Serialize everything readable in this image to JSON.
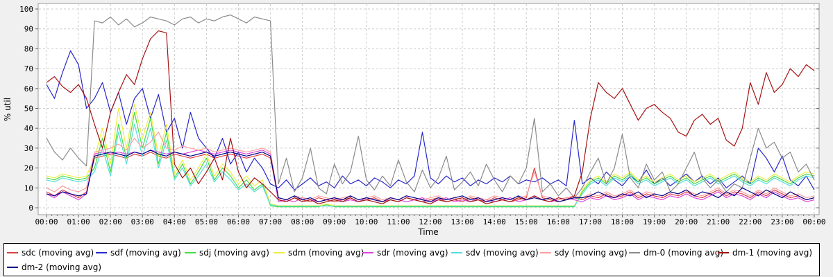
{
  "chart_data": {
    "type": "line",
    "title": "",
    "xlabel": "Time",
    "ylabel": "% util",
    "x_range_hours": [
      0,
      24
    ],
    "ylim": [
      0,
      100
    ],
    "grid": "dashed",
    "legend_position": "bottom",
    "y_ticks": [
      0,
      10,
      20,
      30,
      40,
      50,
      60,
      70,
      80,
      90,
      100
    ],
    "x_tick_labels": [
      "00:00",
      "01:00",
      "02:00",
      "03:00",
      "04:00",
      "05:00",
      "06:00",
      "07:00",
      "08:00",
      "09:00",
      "10:00",
      "11:00",
      "12:00",
      "13:00",
      "14:00",
      "15:00",
      "16:00",
      "17:00",
      "18:00",
      "19:00",
      "20:00",
      "21:00",
      "22:00",
      "23:00",
      "00:00"
    ],
    "colors": {
      "plot_background": "#ffffff",
      "page_background": "#f0f0f0",
      "plot_border": "#999999",
      "gridline": "#cccccc",
      "tick": "#666666",
      "text": "#000000"
    },
    "series": [
      {
        "name": "sdc (moving avg)",
        "color": "#dd4040",
        "values": [
          8,
          6,
          9,
          7,
          5,
          8,
          25,
          26,
          27,
          26,
          25,
          27,
          26,
          28,
          26,
          25,
          27,
          26,
          25,
          26,
          27,
          25,
          26,
          27,
          26,
          25,
          26,
          27,
          25,
          4,
          3,
          5,
          4,
          3,
          5,
          4,
          3,
          4,
          5,
          3,
          4,
          5,
          3,
          4,
          3,
          5,
          4,
          3,
          4,
          5,
          3,
          4,
          3,
          5,
          4,
          3,
          5,
          4,
          3,
          4,
          5,
          20,
          5,
          4,
          3,
          4,
          5,
          4,
          6,
          5,
          7,
          5,
          6,
          8,
          5,
          7,
          6,
          5,
          7,
          6,
          8,
          6,
          5,
          7,
          9,
          6,
          8,
          7,
          5,
          8,
          6,
          9,
          7,
          5,
          6,
          4,
          5
        ]
      },
      {
        "name": "sdf (moving avg)",
        "color": "#2828cc",
        "values": [
          62,
          55,
          68,
          79,
          72,
          50,
          55,
          63,
          48,
          58,
          42,
          55,
          60,
          45,
          57,
          38,
          45,
          30,
          48,
          35,
          30,
          25,
          35,
          22,
          28,
          18,
          25,
          20,
          12,
          10,
          14,
          9,
          12,
          15,
          11,
          13,
          10,
          16,
          12,
          14,
          11,
          15,
          13,
          10,
          14,
          12,
          16,
          38,
          15,
          12,
          16,
          13,
          15,
          11,
          14,
          12,
          15,
          13,
          16,
          12,
          14,
          13,
          15,
          12,
          14,
          11,
          44,
          12,
          15,
          12,
          18,
          14,
          11,
          16,
          13,
          19,
          12,
          15,
          11,
          14,
          17,
          13,
          16,
          12,
          15,
          10,
          13,
          16,
          12,
          30,
          25,
          18,
          26,
          14,
          11,
          16,
          9
        ]
      },
      {
        "name": "sdj (moving avg)",
        "color": "#44dd44",
        "values": [
          15,
          14,
          16,
          15,
          14,
          15,
          20,
          35,
          18,
          42,
          25,
          48,
          30,
          45,
          22,
          38,
          15,
          22,
          12,
          18,
          25,
          14,
          20,
          16,
          10,
          14,
          9,
          12,
          1,
          0.5,
          0.5,
          0.5,
          0.5,
          0.5,
          0.5,
          1.5,
          0.5,
          0.5,
          0.5,
          0.5,
          0.5,
          0.5,
          0.5,
          0.5,
          0.5,
          0.5,
          0.5,
          0.5,
          0.5,
          0.5,
          0.5,
          0.5,
          0.5,
          0.5,
          0.5,
          0.5,
          0.5,
          0.5,
          0.5,
          0.5,
          0.5,
          0.5,
          0.5,
          0.5,
          0.5,
          0.5,
          0.5,
          8,
          13,
          15,
          12,
          16,
          14,
          17,
          13,
          15,
          12,
          14,
          16,
          13,
          15,
          12,
          14,
          16,
          13,
          15,
          17,
          14,
          12,
          15,
          13,
          16,
          14,
          12,
          15,
          17,
          16
        ]
      },
      {
        "name": "sdm (moving avg)",
        "color": "#eded45",
        "values": [
          16,
          15,
          17,
          16,
          15,
          16,
          25,
          40,
          22,
          50,
          30,
          52,
          35,
          48,
          26,
          42,
          17,
          24,
          14,
          20,
          27,
          16,
          22,
          18,
          12,
          16,
          11,
          14,
          2,
          1,
          1,
          1,
          1,
          1,
          1,
          2,
          1,
          1,
          1,
          1,
          1,
          1,
          1,
          1,
          1,
          1,
          1,
          1,
          1,
          1,
          1,
          1,
          1,
          1,
          1,
          1,
          1,
          1,
          1,
          1,
          1,
          1,
          1,
          1,
          1,
          1,
          1,
          9,
          14,
          16,
          13,
          17,
          15,
          18,
          14,
          16,
          13,
          15,
          17,
          14,
          16,
          13,
          15,
          17,
          14,
          16,
          18,
          15,
          13,
          16,
          14,
          17,
          15,
          13,
          16,
          18,
          17
        ]
      },
      {
        "name": "sdr (moving avg)",
        "color": "#dd44dd",
        "values": [
          7,
          5,
          8,
          6,
          4,
          7,
          27,
          28,
          27,
          28,
          27,
          28,
          27,
          29,
          28,
          27,
          28,
          27,
          28,
          29,
          28,
          27,
          28,
          29,
          28,
          27,
          28,
          29,
          27,
          3,
          4,
          3,
          5,
          4,
          3,
          4,
          5,
          3,
          4,
          3,
          5,
          4,
          3,
          5,
          4,
          3,
          4,
          5,
          3,
          4,
          5,
          3,
          4,
          3,
          5,
          4,
          3,
          4,
          5,
          3,
          4,
          6,
          4,
          3,
          4,
          5,
          4,
          3,
          5,
          4,
          6,
          4,
          5,
          7,
          4,
          6,
          5,
          4,
          6,
          5,
          7,
          5,
          4,
          6,
          8,
          5,
          7,
          6,
          4,
          7,
          5,
          8,
          6,
          4,
          5,
          3,
          4
        ]
      },
      {
        "name": "sdv (moving avg)",
        "color": "#55dddd",
        "values": [
          14,
          13,
          15,
          14,
          13,
          14,
          18,
          30,
          16,
          38,
          22,
          42,
          26,
          40,
          20,
          34,
          14,
          20,
          11,
          16,
          22,
          13,
          18,
          14,
          9,
          12,
          8,
          11,
          1.5,
          0.8,
          0.8,
          0.8,
          0.8,
          0.8,
          0.8,
          0.8,
          0.8,
          0.8,
          0.8,
          0.8,
          0.8,
          0.8,
          0.8,
          0.8,
          0.8,
          0.8,
          0.8,
          0.8,
          0.8,
          0.8,
          0.8,
          0.8,
          0.8,
          0.8,
          0.8,
          0.8,
          0.8,
          0.8,
          0.8,
          0.8,
          0.8,
          0.8,
          0.8,
          0.8,
          0.8,
          0.8,
          0.8,
          7,
          12,
          14,
          11,
          15,
          13,
          16,
          12,
          14,
          11,
          13,
          15,
          12,
          14,
          11,
          13,
          15,
          12,
          14,
          16,
          13,
          11,
          14,
          12,
          15,
          13,
          11,
          14,
          16,
          15
        ]
      },
      {
        "name": "sdy (moving avg)",
        "color": "#ff9e9e",
        "values": [
          10,
          8,
          11,
          9,
          8,
          10,
          28,
          29,
          30,
          32,
          29,
          35,
          30,
          33,
          38,
          30,
          29,
          31,
          30,
          29,
          30,
          28,
          29,
          30,
          29,
          28,
          29,
          30,
          28,
          5,
          4,
          6,
          5,
          4,
          6,
          5,
          4,
          5,
          6,
          4,
          5,
          6,
          4,
          5,
          4,
          6,
          5,
          4,
          5,
          6,
          4,
          5,
          4,
          6,
          5,
          4,
          6,
          5,
          4,
          5,
          6,
          18,
          6,
          5,
          4,
          5,
          6,
          5,
          7,
          6,
          8,
          6,
          7,
          9,
          6,
          8,
          7,
          6,
          8,
          7,
          9,
          7,
          6,
          8,
          10,
          7,
          9,
          8,
          6,
          9,
          7,
          10,
          8,
          6,
          7,
          5,
          6
        ]
      },
      {
        "name": "dm-0 (moving avg)",
        "color": "#8a8a8a",
        "values": [
          35,
          28,
          24,
          30,
          25,
          21,
          94,
          93,
          96,
          92,
          95,
          91,
          93,
          96,
          95,
          94,
          92,
          95,
          96,
          93,
          95,
          94,
          96,
          97,
          95,
          93,
          96,
          95,
          94,
          12,
          25,
          8,
          15,
          30,
          10,
          7,
          22,
          12,
          18,
          36,
          14,
          9,
          16,
          11,
          24,
          13,
          8,
          19,
          10,
          15,
          26,
          9,
          13,
          18,
          11,
          22,
          14,
          8,
          16,
          12,
          20,
          45,
          8,
          12,
          6,
          10,
          5,
          10,
          18,
          25,
          12,
          20,
          37,
          15,
          10,
          22,
          14,
          18,
          8,
          12,
          20,
          28,
          15,
          10,
          14,
          8,
          12,
          10,
          25,
          40,
          30,
          33,
          25,
          28,
          18,
          22,
          14
        ]
      },
      {
        "name": "dm-1 (moving avg)",
        "color": "#a51212",
        "values": [
          63,
          66,
          61,
          58,
          62,
          55,
          42,
          30,
          48,
          58,
          67,
          62,
          75,
          85,
          89,
          88,
          22,
          15,
          20,
          12,
          18,
          25,
          14,
          35,
          18,
          10,
          15,
          12,
          8,
          4,
          3,
          5,
          3,
          4,
          2,
          3,
          4,
          3,
          5,
          3,
          4,
          3,
          2,
          4,
          3,
          5,
          4,
          3,
          2,
          4,
          3,
          4,
          5,
          3,
          4,
          2,
          3,
          4,
          3,
          5,
          4,
          6,
          4,
          3,
          5,
          4,
          6,
          18,
          45,
          63,
          58,
          55,
          60,
          52,
          44,
          50,
          52,
          48,
          45,
          38,
          36,
          44,
          47,
          42,
          45,
          34,
          31,
          40,
          63,
          52,
          68,
          58,
          62,
          70,
          66,
          72,
          69
        ]
      },
      {
        "name": "dm-2 (moving avg)",
        "color": "#00008b",
        "values": [
          7,
          6,
          8,
          7,
          6,
          7,
          26,
          27,
          28,
          27,
          26,
          28,
          27,
          29,
          27,
          26,
          28,
          27,
          26,
          27,
          28,
          26,
          27,
          28,
          27,
          26,
          27,
          28,
          26,
          5,
          4,
          6,
          4,
          5,
          3,
          4,
          5,
          4,
          6,
          4,
          5,
          4,
          3,
          5,
          4,
          6,
          5,
          4,
          3,
          5,
          4,
          5,
          6,
          4,
          5,
          3,
          4,
          5,
          4,
          6,
          4,
          5,
          4,
          5,
          3,
          4,
          5,
          5,
          6,
          8,
          6,
          5,
          7,
          6,
          8,
          5,
          7,
          6,
          8,
          7,
          9,
          6,
          8,
          7,
          5,
          8,
          6,
          10,
          8,
          6,
          9,
          7,
          5,
          8,
          6,
          4,
          5
        ]
      }
    ]
  }
}
